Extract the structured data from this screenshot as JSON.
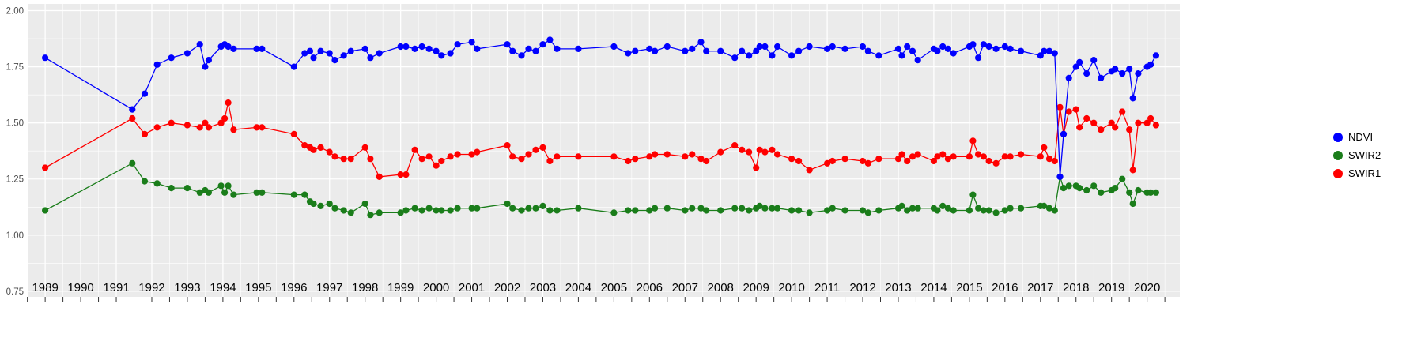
{
  "chart_data": {
    "type": "line",
    "title": "",
    "xlabel": "",
    "ylabel": "",
    "grid": true,
    "legend_position": "right",
    "panel_bg": "#EBEBEB",
    "grid_color": "#FFFFFF",
    "axis_text_color": "#4D4D4D",
    "x_tick_text_color": "#000000",
    "xlim": [
      1988.53,
      2020.92
    ],
    "ylim": [
      0.725,
      2.03
    ],
    "x_ticks": [
      1989,
      1990,
      1991,
      1992,
      1993,
      1994,
      1995,
      1996,
      1997,
      1998,
      1999,
      2000,
      2001,
      2002,
      2003,
      2004,
      2005,
      2006,
      2007,
      2008,
      2009,
      2010,
      2011,
      2012,
      2013,
      2014,
      2015,
      2016,
      2017,
      2018,
      2019,
      2020
    ],
    "y_ticks": [
      {
        "value": 2.0,
        "label": "2.00"
      },
      {
        "value": 1.75,
        "label": "1.75"
      },
      {
        "value": 1.5,
        "label": "1.50"
      },
      {
        "value": 1.25,
        "label": "1.25"
      },
      {
        "value": 1.0,
        "label": "1.00"
      },
      {
        "value": 0.75,
        "label": "0.75"
      }
    ],
    "x": [
      1989.0,
      1991.45,
      1991.8,
      1992.15,
      1992.55,
      1993.0,
      1993.35,
      1993.5,
      1993.6,
      1993.95,
      1994.05,
      1994.15,
      1994.3,
      1994.95,
      1995.1,
      1996.0,
      1996.3,
      1996.45,
      1996.55,
      1996.75,
      1997.0,
      1997.15,
      1997.4,
      1997.6,
      1998.0,
      1998.15,
      1998.4,
      1999.0,
      1999.15,
      1999.4,
      1999.6,
      1999.8,
      2000.0,
      2000.15,
      2000.4,
      2000.6,
      2001.0,
      2001.15,
      2002.0,
      2002.15,
      2002.4,
      2002.6,
      2002.8,
      2003.0,
      2003.2,
      2003.4,
      2004.0,
      2005.0,
      2005.4,
      2005.6,
      2006.0,
      2006.15,
      2006.5,
      2007.0,
      2007.2,
      2007.45,
      2007.6,
      2008.0,
      2008.4,
      2008.6,
      2008.8,
      2009.0,
      2009.1,
      2009.25,
      2009.45,
      2009.6,
      2010.0,
      2010.2,
      2010.5,
      2011.0,
      2011.15,
      2011.5,
      2012.0,
      2012.15,
      2012.45,
      2013.0,
      2013.1,
      2013.25,
      2013.4,
      2013.55,
      2014.0,
      2014.1,
      2014.25,
      2014.4,
      2014.55,
      2015.0,
      2015.1,
      2015.25,
      2015.4,
      2015.55,
      2015.75,
      2016.0,
      2016.15,
      2016.45,
      2017.0,
      2017.1,
      2017.25,
      2017.4,
      2017.55,
      2017.65,
      2017.8,
      2018.0,
      2018.1,
      2018.3,
      2018.5,
      2018.7,
      2019.0,
      2019.1,
      2019.3,
      2019.5,
      2019.6,
      2019.75,
      2020.0,
      2020.1,
      2020.25
    ],
    "series": [
      {
        "name": "NDVI",
        "color": "#0000FF",
        "values": [
          1.79,
          1.56,
          1.63,
          1.76,
          1.79,
          1.81,
          1.85,
          1.75,
          1.78,
          1.84,
          1.85,
          1.84,
          1.83,
          1.83,
          1.83,
          1.75,
          1.81,
          1.82,
          1.79,
          1.82,
          1.81,
          1.78,
          1.8,
          1.82,
          1.83,
          1.79,
          1.81,
          1.84,
          1.84,
          1.83,
          1.84,
          1.83,
          1.82,
          1.8,
          1.81,
          1.85,
          1.86,
          1.83,
          1.85,
          1.82,
          1.8,
          1.83,
          1.82,
          1.85,
          1.87,
          1.83,
          1.83,
          1.84,
          1.81,
          1.82,
          1.83,
          1.82,
          1.84,
          1.82,
          1.83,
          1.86,
          1.82,
          1.82,
          1.79,
          1.82,
          1.8,
          1.82,
          1.84,
          1.84,
          1.8,
          1.84,
          1.8,
          1.82,
          1.84,
          1.83,
          1.84,
          1.83,
          1.84,
          1.82,
          1.8,
          1.83,
          1.8,
          1.84,
          1.82,
          1.78,
          1.83,
          1.82,
          1.84,
          1.83,
          1.81,
          1.84,
          1.85,
          1.79,
          1.85,
          1.84,
          1.83,
          1.84,
          1.83,
          1.82,
          1.8,
          1.82,
          1.82,
          1.81,
          1.26,
          1.45,
          1.7,
          1.75,
          1.77,
          1.72,
          1.78,
          1.7,
          1.73,
          1.74,
          1.72,
          1.74,
          1.61,
          1.72,
          1.75,
          1.76,
          1.8
        ]
      },
      {
        "name": "SWIR2",
        "color": "#1A7D1A",
        "values": [
          1.11,
          1.32,
          1.24,
          1.23,
          1.21,
          1.21,
          1.19,
          1.2,
          1.19,
          1.22,
          1.19,
          1.22,
          1.18,
          1.19,
          1.19,
          1.18,
          1.18,
          1.15,
          1.14,
          1.13,
          1.14,
          1.12,
          1.11,
          1.1,
          1.14,
          1.09,
          1.1,
          1.1,
          1.11,
          1.12,
          1.11,
          1.12,
          1.11,
          1.11,
          1.11,
          1.12,
          1.12,
          1.12,
          1.14,
          1.12,
          1.11,
          1.12,
          1.12,
          1.13,
          1.11,
          1.11,
          1.12,
          1.1,
          1.11,
          1.11,
          1.11,
          1.12,
          1.12,
          1.11,
          1.12,
          1.12,
          1.11,
          1.11,
          1.12,
          1.12,
          1.11,
          1.12,
          1.13,
          1.12,
          1.12,
          1.12,
          1.11,
          1.11,
          1.1,
          1.11,
          1.12,
          1.11,
          1.11,
          1.1,
          1.11,
          1.12,
          1.13,
          1.11,
          1.12,
          1.12,
          1.12,
          1.11,
          1.13,
          1.12,
          1.11,
          1.11,
          1.18,
          1.12,
          1.11,
          1.11,
          1.1,
          1.11,
          1.12,
          1.12,
          1.13,
          1.13,
          1.12,
          1.11,
          1.26,
          1.21,
          1.22,
          1.22,
          1.21,
          1.2,
          1.22,
          1.19,
          1.2,
          1.21,
          1.25,
          1.19,
          1.14,
          1.2,
          1.19,
          1.19,
          1.19
        ]
      },
      {
        "name": "SWIR1",
        "color": "#FF0000",
        "values": [
          1.3,
          1.52,
          1.45,
          1.48,
          1.5,
          1.49,
          1.48,
          1.5,
          1.48,
          1.5,
          1.52,
          1.59,
          1.47,
          1.48,
          1.48,
          1.45,
          1.4,
          1.39,
          1.38,
          1.39,
          1.37,
          1.35,
          1.34,
          1.34,
          1.39,
          1.34,
          1.26,
          1.27,
          1.27,
          1.38,
          1.34,
          1.35,
          1.31,
          1.33,
          1.35,
          1.36,
          1.36,
          1.37,
          1.4,
          1.35,
          1.34,
          1.36,
          1.38,
          1.39,
          1.33,
          1.35,
          1.35,
          1.35,
          1.33,
          1.34,
          1.35,
          1.36,
          1.36,
          1.35,
          1.36,
          1.34,
          1.33,
          1.37,
          1.4,
          1.38,
          1.37,
          1.3,
          1.38,
          1.37,
          1.38,
          1.36,
          1.34,
          1.33,
          1.29,
          1.32,
          1.33,
          1.34,
          1.33,
          1.32,
          1.34,
          1.34,
          1.36,
          1.33,
          1.35,
          1.36,
          1.33,
          1.35,
          1.36,
          1.34,
          1.35,
          1.35,
          1.42,
          1.36,
          1.35,
          1.33,
          1.32,
          1.35,
          1.35,
          1.36,
          1.35,
          1.39,
          1.34,
          1.33,
          1.57,
          1.45,
          1.55,
          1.56,
          1.48,
          1.52,
          1.5,
          1.47,
          1.5,
          1.48,
          1.55,
          1.47,
          1.29,
          1.5,
          1.5,
          1.52,
          1.49
        ]
      }
    ]
  }
}
